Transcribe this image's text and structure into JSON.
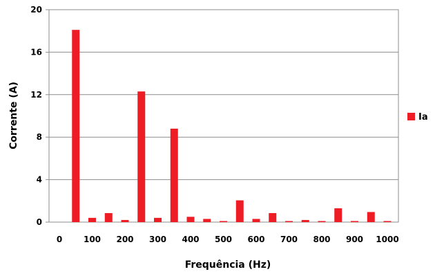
{
  "chart_data": {
    "type": "bar",
    "title": "",
    "xlabel": "Frequência (Hz)",
    "ylabel": "Corrente (A)",
    "ylim": [
      0,
      20
    ],
    "yticks": [
      "0",
      "4",
      "8",
      "12",
      "16",
      "20"
    ],
    "xticks": [
      "0",
      "100",
      "200",
      "300",
      "400",
      "500",
      "600",
      "700",
      "800",
      "900",
      "1000"
    ],
    "xlim": [
      0,
      1000
    ],
    "grid": "horizontal",
    "legend_position": "right",
    "series": [
      {
        "name": "Ia",
        "color": "#ee1c25",
        "x": [
          50,
          100,
          150,
          200,
          250,
          300,
          350,
          400,
          450,
          500,
          550,
          600,
          650,
          700,
          750,
          800,
          850,
          900,
          950,
          1000
        ],
        "values": [
          18.1,
          0.4,
          0.85,
          0.2,
          12.3,
          0.4,
          8.8,
          0.5,
          0.3,
          0.1,
          2.05,
          0.3,
          0.85,
          0.1,
          0.2,
          0.1,
          1.3,
          0.1,
          0.95,
          0.1
        ]
      }
    ]
  }
}
